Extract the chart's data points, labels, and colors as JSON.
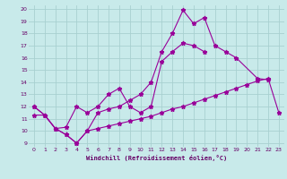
{
  "background_color": "#c8eaea",
  "grid_color": "#a8d0d0",
  "line_color": "#990099",
  "xlabel": "Windchill (Refroidissement éolien,°C)",
  "xlim": [
    -0.5,
    23.5
  ],
  "ylim": [
    8.7,
    20.3
  ],
  "yticks": [
    9,
    10,
    11,
    12,
    13,
    14,
    15,
    16,
    17,
    18,
    19,
    20
  ],
  "xticks": [
    0,
    1,
    2,
    3,
    4,
    5,
    6,
    7,
    8,
    9,
    10,
    11,
    12,
    13,
    14,
    15,
    16,
    17,
    18,
    19,
    20,
    21,
    22,
    23
  ],
  "line1_x": [
    0,
    1,
    2,
    3,
    4,
    5,
    6,
    7,
    8,
    9,
    10,
    11,
    12,
    13,
    14,
    15,
    16,
    17,
    18,
    19,
    21,
    22
  ],
  "line1_y": [
    12.0,
    11.3,
    10.2,
    9.7,
    9.0,
    10.0,
    11.5,
    11.8,
    12.0,
    12.5,
    13.0,
    14.0,
    16.5,
    18.0,
    19.9,
    18.8,
    19.3,
    17.0,
    16.5,
    16.0,
    14.3,
    14.2
  ],
  "line2_x": [
    0,
    1,
    2,
    3,
    4,
    5,
    6,
    7,
    8,
    9,
    10,
    11,
    12,
    13,
    14,
    15,
    16
  ],
  "line2_y": [
    12.0,
    11.3,
    10.2,
    10.3,
    12.0,
    11.5,
    12.0,
    13.0,
    13.5,
    12.0,
    11.5,
    12.0,
    15.7,
    16.5,
    17.2,
    17.0,
    16.5
  ],
  "line3_x": [
    0,
    1,
    2,
    3,
    4,
    5,
    6,
    7,
    8,
    9,
    10,
    11,
    12,
    13,
    14,
    15,
    16,
    17,
    18,
    19,
    20,
    21,
    22,
    23
  ],
  "line3_y": [
    11.3,
    11.3,
    10.2,
    9.7,
    9.0,
    10.0,
    10.2,
    10.4,
    10.6,
    10.8,
    11.0,
    11.2,
    11.5,
    11.8,
    12.0,
    12.3,
    12.6,
    12.9,
    13.2,
    13.5,
    13.8,
    14.1,
    14.3,
    11.5
  ]
}
